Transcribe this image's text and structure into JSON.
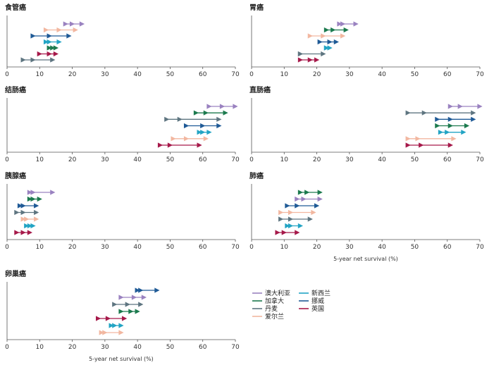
{
  "chart_data": {
    "type": "dumbbell",
    "xlim": [
      0,
      70
    ],
    "xticks": [
      0,
      10,
      20,
      30,
      40,
      50,
      60,
      70
    ],
    "colors": {
      "澳大利亚": "#9a82c0",
      "加拿大": "#1c7a4e",
      "丹麦": "#5e7580",
      "爱尔兰": "#f2b7a0",
      "新西兰": "#22a4c4",
      "挪威": "#1f5a96",
      "英国": "#a6194a"
    },
    "legend": {
      "columns": [
        [
          "澳大利亚",
          "加拿大",
          "丹麦",
          "爱尔兰"
        ],
        [
          "新西兰",
          "挪威",
          "英国"
        ]
      ]
    },
    "panels": [
      {
        "title": "食管癌",
        "xlabel": "",
        "rows": [
          {
            "country": "澳大利亚",
            "values": [
              18,
              20,
              23
            ]
          },
          {
            "country": "爱尔兰",
            "values": [
              12,
              16,
              21
            ]
          },
          {
            "country": "挪威",
            "values": [
              8,
              13,
              19
            ]
          },
          {
            "country": "新西兰",
            "values": [
              12,
              13,
              16
            ]
          },
          {
            "country": "加拿大",
            "values": [
              13,
              14,
              15
            ]
          },
          {
            "country": "英国",
            "values": [
              10,
              13,
              15
            ]
          },
          {
            "country": "丹麦",
            "values": [
              5,
              8,
              14
            ]
          }
        ]
      },
      {
        "title": "胃癌",
        "xlabel": "",
        "rows": [
          {
            "country": "澳大利亚",
            "values": [
              27,
              28,
              32
            ]
          },
          {
            "country": "加拿大",
            "values": [
              23,
              25,
              29
            ]
          },
          {
            "country": "爱尔兰",
            "values": [
              18,
              22,
              28
            ]
          },
          {
            "country": "挪威",
            "values": [
              21,
              24,
              26
            ]
          },
          {
            "country": "新西兰",
            "values": [
              23,
              23,
              24
            ]
          },
          {
            "country": "丹麦",
            "values": [
              15,
              15,
              22
            ]
          },
          {
            "country": "英国",
            "values": [
              15,
              18,
              20
            ]
          }
        ]
      },
      {
        "title": "结肠癌",
        "xlabel": "",
        "rows": [
          {
            "country": "澳大利亚",
            "values": [
              62,
              66,
              70
            ]
          },
          {
            "country": "加拿大",
            "values": [
              58,
              61,
              67
            ]
          },
          {
            "country": "丹麦",
            "values": [
              49,
              53,
              65
            ]
          },
          {
            "country": "挪威",
            "values": [
              55,
              60,
              65
            ]
          },
          {
            "country": "新西兰",
            "values": [
              59,
              60,
              62
            ]
          },
          {
            "country": "爱尔兰",
            "values": [
              51,
              55,
              61
            ]
          },
          {
            "country": "英国",
            "values": [
              47,
              50,
              59
            ]
          }
        ]
      },
      {
        "title": "直肠癌",
        "xlabel": "",
        "rows": [
          {
            "country": "澳大利亚",
            "values": [
              61,
              64,
              70
            ]
          },
          {
            "country": "丹麦",
            "values": [
              48,
              53,
              68
            ]
          },
          {
            "country": "挪威",
            "values": [
              57,
              61,
              68
            ]
          },
          {
            "country": "加拿大",
            "values": [
              57,
              61,
              66
            ]
          },
          {
            "country": "新西兰",
            "values": [
              58,
              60,
              65
            ]
          },
          {
            "country": "爱尔兰",
            "values": [
              48,
              51,
              62
            ]
          },
          {
            "country": "英国",
            "values": [
              48,
              52,
              61
            ]
          }
        ]
      },
      {
        "title": "胰腺癌",
        "xlabel": "",
        "rows": [
          {
            "country": "澳大利亚",
            "values": [
              7,
              8,
              14
            ]
          },
          {
            "country": "加拿大",
            "values": [
              7,
              8,
              10
            ]
          },
          {
            "country": "挪威",
            "values": [
              4,
              5,
              9
            ]
          },
          {
            "country": "丹麦",
            "values": [
              3,
              5,
              9
            ]
          },
          {
            "country": "爱尔兰",
            "values": [
              5,
              6,
              9
            ]
          },
          {
            "country": "新西兰",
            "values": [
              6,
              7,
              8
            ]
          },
          {
            "country": "英国",
            "values": [
              3,
              5,
              7
            ]
          }
        ]
      },
      {
        "title": "肺癌",
        "xlabel": "5-year net survival (%)",
        "rows": [
          {
            "country": "加拿大",
            "values": [
              15,
              17,
              21
            ]
          },
          {
            "country": "澳大利亚",
            "values": [
              14,
              16,
              21
            ]
          },
          {
            "country": "挪威",
            "values": [
              11,
              14,
              20
            ]
          },
          {
            "country": "爱尔兰",
            "values": [
              9,
              12,
              19
            ]
          },
          {
            "country": "丹麦",
            "values": [
              9,
              12,
              18
            ]
          },
          {
            "country": "新西兰",
            "values": [
              11,
              12,
              15
            ]
          },
          {
            "country": "英国",
            "values": [
              8,
              10,
              14
            ]
          }
        ]
      },
      {
        "title": "卵巢癌",
        "xlabel": "5-year net survival (%)",
        "rows": [
          {
            "country": "挪威",
            "values": [
              40,
              41,
              46
            ]
          },
          {
            "country": "澳大利亚",
            "values": [
              35,
              39,
              42
            ]
          },
          {
            "country": "丹麦",
            "values": [
              33,
              37,
              41
            ]
          },
          {
            "country": "加拿大",
            "values": [
              35,
              38,
              40
            ]
          },
          {
            "country": "英国",
            "values": [
              28,
              31,
              36
            ]
          },
          {
            "country": "新西兰",
            "values": [
              32,
              33,
              35
            ]
          },
          {
            "country": "爱尔兰",
            "values": [
              29,
              30,
              35
            ]
          }
        ]
      }
    ]
  }
}
